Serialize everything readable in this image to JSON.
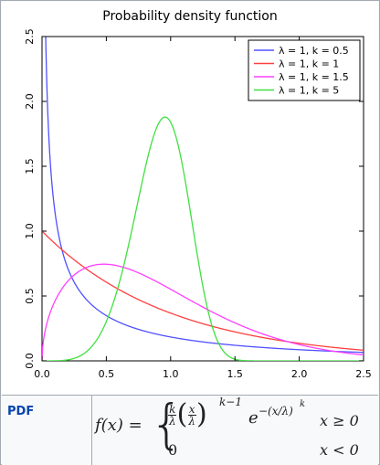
{
  "chart_data": {
    "type": "line",
    "title": "Probability density function",
    "xlim": [
      0,
      2.5
    ],
    "ylim": [
      0,
      2.5
    ],
    "x_ticks": [
      "0.0",
      "0.5",
      "1.0",
      "1.5",
      "2.0",
      "2.5"
    ],
    "y_ticks": [
      "0.0",
      "0.5",
      "1.0",
      "1.5",
      "2.0",
      "2.5"
    ],
    "grid": false,
    "legend_position": "top-right",
    "series": [
      {
        "name": "λ = 1, k = 0.5",
        "color": "#5050ff",
        "lambda": 1,
        "k": 0.5
      },
      {
        "name": "λ = 1, k = 1",
        "color": "#ff4040",
        "lambda": 1,
        "k": 1
      },
      {
        "name": "λ = 1, k = 1.5",
        "color": "#ff40ff",
        "lambda": 1,
        "k": 1.5
      },
      {
        "name": "λ = 1, k = 5",
        "color": "#40e040",
        "lambda": 1,
        "k": 5
      }
    ]
  },
  "pdf_row": {
    "label": "PDF",
    "formula": {
      "lhs": "f(x) =",
      "coef_num": "k",
      "coef_den": "λ",
      "base_num": "x",
      "base_den": "λ",
      "exp1": "k−1",
      "exp_e": "e",
      "exp2": "−(x/λ)",
      "exp2_k": "k",
      "cond1": "x ≥ 0",
      "case2": "0",
      "cond2": "x < 0"
    }
  }
}
